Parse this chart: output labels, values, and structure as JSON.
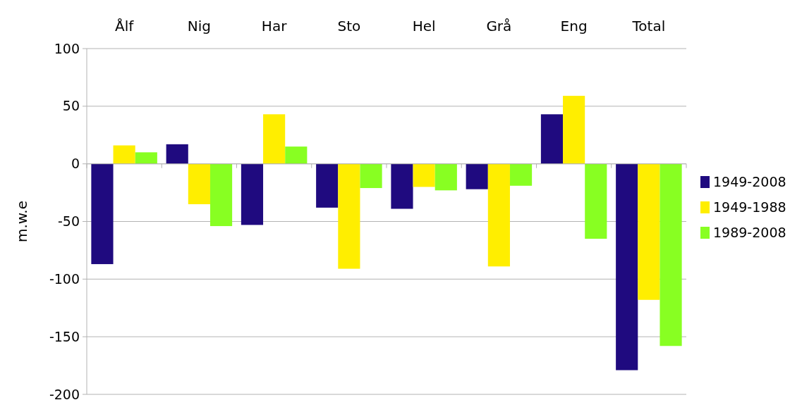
{
  "chart_data": {
    "type": "bar",
    "ylabel": "m.w.e",
    "categories": [
      "Ålf",
      "Nig",
      "Har",
      "Sto",
      "Hel",
      "Grå",
      "Eng",
      "Total"
    ],
    "series": [
      {
        "name": "1949-2008",
        "color": "#1f0a7f",
        "values": [
          -87,
          17,
          -53,
          -38,
          -39,
          -22,
          43,
          -179
        ]
      },
      {
        "name": "1949-1988",
        "color": "#ffee00",
        "values": [
          16,
          -35,
          43,
          -91,
          -20,
          -89,
          59,
          -118
        ]
      },
      {
        "name": "1989-2008",
        "color": "#88ff22",
        "values": [
          10,
          -54,
          15,
          -21,
          -23,
          -19,
          -65,
          -158
        ]
      }
    ],
    "ylim": [
      -200,
      100
    ],
    "yticks": [
      -200,
      -150,
      -100,
      -50,
      0,
      50,
      100
    ],
    "grid": "y",
    "legend": "right"
  }
}
